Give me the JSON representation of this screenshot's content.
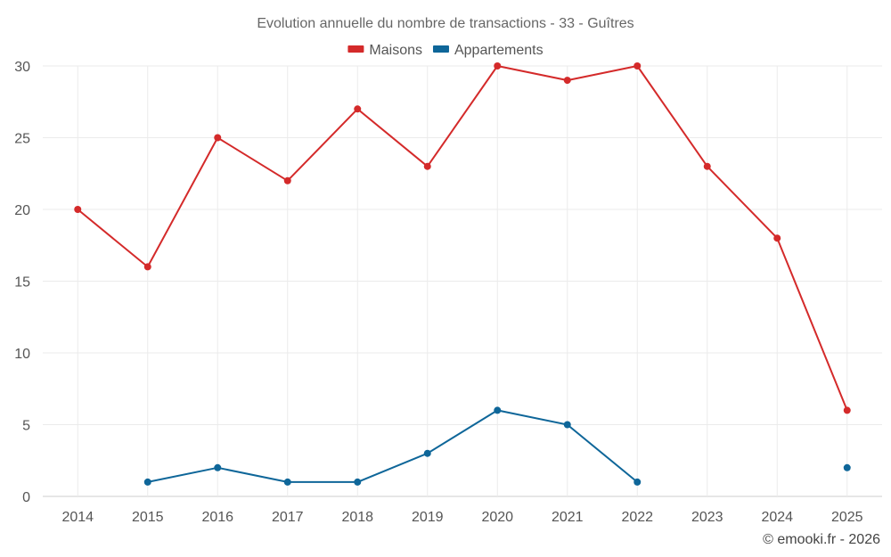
{
  "chart_data": {
    "type": "line",
    "title": "Evolution annuelle du nombre de transactions - 33 - Guîtres",
    "xlabel": "",
    "ylabel": "",
    "categories": [
      "2014",
      "2015",
      "2016",
      "2017",
      "2018",
      "2019",
      "2020",
      "2021",
      "2022",
      "2023",
      "2024",
      "2025"
    ],
    "ylim": [
      0,
      30
    ],
    "yticks": [
      0,
      5,
      10,
      15,
      20,
      25,
      30
    ],
    "grid": true,
    "legend_position": "top-center",
    "series": [
      {
        "name": "Maisons",
        "color": "#d42a2a",
        "values": [
          20,
          16,
          25,
          22,
          27,
          23,
          30,
          29,
          30,
          23,
          18,
          6
        ]
      },
      {
        "name": "Appartements",
        "color": "#0e6699",
        "values": [
          null,
          1,
          2,
          1,
          1,
          3,
          6,
          5,
          1,
          null,
          null,
          2
        ]
      }
    ]
  },
  "credit": "© emooki.fr - 2026"
}
